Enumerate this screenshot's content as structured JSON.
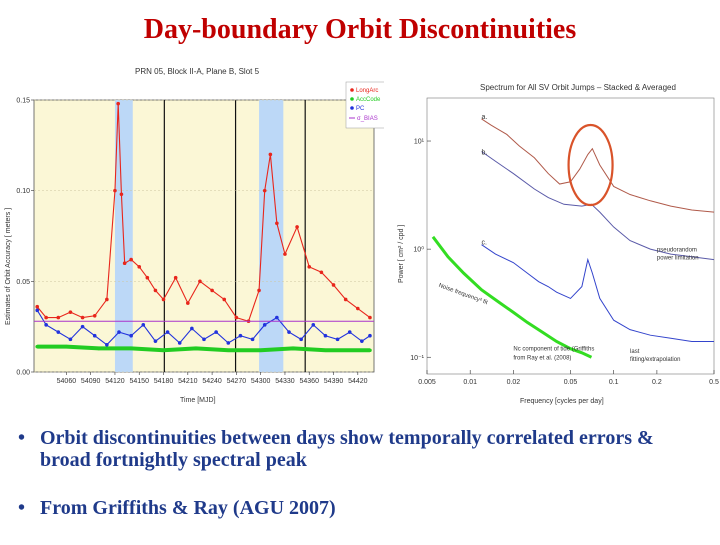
{
  "title": "Day-boundary Orbit Discontinuities",
  "bullets": [
    {
      "mark": "•",
      "text": "Orbit discontinuities between days show temporally correlated errors & broad fortnightly spectral peak"
    },
    {
      "mark": "•",
      "text": "From Griffiths & Ray (AGU 2007)"
    }
  ],
  "colors": {
    "title": "#c00000",
    "bullet_text": "#1f3a8a",
    "longarc": "#e8261c",
    "acccode": "#22cc22",
    "pc": "#2233dd",
    "sigma": "#aa33cc",
    "eclipse_band": "#bcd8f7",
    "plot_bg": "#fbf7d6",
    "highlight_circle": "#d9532a"
  },
  "chart_data": [
    {
      "type": "line",
      "title": "PRN 05, Block II-A, Plane B, Slot 5",
      "xlabel": "Time   [MJD]",
      "ylabel": "Estimates of Orbit Accuracy   [ meters ]",
      "xlim": [
        54020,
        54440
      ],
      "ylim": [
        0,
        0.15
      ],
      "xticks": [
        "54060",
        "54090",
        "54120",
        "54150",
        "54180",
        "54210",
        "54240",
        "54270",
        "54300",
        "54330",
        "54360",
        "54390",
        "54420"
      ],
      "xtick_values": [
        54060,
        54090,
        54120,
        54150,
        54180,
        54210,
        54240,
        54270,
        54300,
        54330,
        54360,
        54390,
        54420
      ],
      "yticks": [
        "0.00",
        "0.05",
        "0.10",
        "0.15"
      ],
      "ytick_values": [
        0,
        0.05,
        0.1,
        0.15
      ],
      "shaded_spans": [
        [
          54120,
          54142
        ],
        [
          54298,
          54328
        ]
      ],
      "vertical_lines": [
        54181,
        54269,
        54355
      ],
      "legend": [
        "LongArc",
        "AccCode",
        "PC",
        "σ_BIAS"
      ],
      "legend_position": "top-right",
      "series": [
        {
          "name": "LongArc",
          "x": [
            54024,
            54035,
            54050,
            54065,
            54080,
            54095,
            54110,
            54120,
            54124,
            54128,
            54132,
            54140,
            54150,
            54160,
            54170,
            54180,
            54195,
            54210,
            54225,
            54240,
            54255,
            54270,
            54285,
            54298,
            54305,
            54312,
            54320,
            54330,
            54345,
            54360,
            54375,
            54390,
            54405,
            54420,
            54435
          ],
          "values": [
            0.036,
            0.03,
            0.03,
            0.033,
            0.03,
            0.031,
            0.04,
            0.1,
            0.148,
            0.098,
            0.06,
            0.062,
            0.058,
            0.052,
            0.045,
            0.04,
            0.052,
            0.038,
            0.05,
            0.045,
            0.04,
            0.03,
            0.028,
            0.045,
            0.1,
            0.12,
            0.082,
            0.065,
            0.08,
            0.058,
            0.055,
            0.048,
            0.04,
            0.035,
            0.03
          ]
        },
        {
          "name": "AccCode",
          "x": [
            54024,
            54060,
            54100,
            54140,
            54180,
            54220,
            54260,
            54300,
            54340,
            54380,
            54435
          ],
          "values": [
            0.014,
            0.014,
            0.013,
            0.013,
            0.012,
            0.013,
            0.012,
            0.012,
            0.013,
            0.012,
            0.012
          ]
        },
        {
          "name": "PC",
          "x": [
            54024,
            54035,
            54050,
            54065,
            54080,
            54095,
            54110,
            54125,
            54140,
            54155,
            54170,
            54185,
            54200,
            54215,
            54230,
            54245,
            54260,
            54275,
            54290,
            54305,
            54320,
            54335,
            54350,
            54365,
            54380,
            54395,
            54410,
            54425,
            54435
          ],
          "values": [
            0.034,
            0.026,
            0.022,
            0.018,
            0.025,
            0.02,
            0.015,
            0.022,
            0.02,
            0.026,
            0.017,
            0.022,
            0.016,
            0.024,
            0.018,
            0.022,
            0.016,
            0.02,
            0.018,
            0.026,
            0.03,
            0.022,
            0.018,
            0.026,
            0.02,
            0.018,
            0.022,
            0.017,
            0.02
          ]
        },
        {
          "name": "σ_BIAS",
          "x": [
            54020,
            54440
          ],
          "values": [
            0.028,
            0.028
          ]
        }
      ]
    },
    {
      "type": "line",
      "title": "Spectrum for All SV Orbit Jumps – Stacked & Averaged",
      "xlabel": "Frequency   [cycles per day]",
      "ylabel": "Power   [ cm² / cpd ]",
      "xscale": "log",
      "yscale": "log",
      "xlim": [
        0.005,
        0.5
      ],
      "ylim": [
        0.07,
        25
      ],
      "xticks": [
        "0.005",
        "0.01",
        "0.02",
        "0.05",
        "0.1",
        "0.2",
        "0.5"
      ],
      "xtick_values": [
        0.005,
        0.01,
        0.02,
        0.05,
        0.1,
        0.2,
        0.5
      ],
      "yticks": [
        "10⁻¹",
        "10⁰",
        "10¹"
      ],
      "ytick_values": [
        0.1,
        1,
        10
      ],
      "series": [
        {
          "name": "a.",
          "x": [
            0.012,
            0.014,
            0.018,
            0.022,
            0.028,
            0.035,
            0.042,
            0.05,
            0.058,
            0.066,
            0.071,
            0.08,
            0.1,
            0.13,
            0.18,
            0.25,
            0.35,
            0.5
          ],
          "values": [
            16,
            14,
            11.5,
            9,
            7,
            5,
            4,
            4.2,
            5.5,
            7.5,
            8.5,
            6,
            3.8,
            3.2,
            2.8,
            2.5,
            2.3,
            2.2
          ]
        },
        {
          "name": "b.",
          "x": [
            0.012,
            0.015,
            0.02,
            0.028,
            0.035,
            0.045,
            0.06,
            0.07,
            0.08,
            0.1,
            0.13,
            0.18,
            0.25,
            0.35,
            0.5
          ],
          "values": [
            8,
            6.5,
            5,
            3.6,
            3,
            2.6,
            2.5,
            2.6,
            2.2,
            1.6,
            1.2,
            1.0,
            0.9,
            0.85,
            0.8
          ]
        },
        {
          "name": "c.",
          "x": [
            0.012,
            0.015,
            0.02,
            0.025,
            0.03,
            0.035,
            0.04,
            0.05,
            0.06,
            0.066,
            0.071,
            0.08,
            0.1,
            0.13,
            0.18,
            0.25,
            0.35,
            0.5
          ],
          "values": [
            1.1,
            0.9,
            0.75,
            0.6,
            0.5,
            0.45,
            0.4,
            0.35,
            0.45,
            0.8,
            0.6,
            0.35,
            0.22,
            0.18,
            0.16,
            0.15,
            0.14,
            0.14
          ]
        },
        {
          "name": "green",
          "x": [
            0.0055,
            0.007,
            0.009,
            0.012,
            0.016,
            0.02,
            0.025,
            0.032,
            0.04,
            0.05,
            0.06,
            0.07
          ],
          "values": [
            1.3,
            0.85,
            0.6,
            0.42,
            0.32,
            0.26,
            0.21,
            0.17,
            0.14,
            0.12,
            0.11,
            0.1
          ]
        }
      ],
      "annotations": [
        {
          "text": "a.",
          "x": 0.012,
          "y": 16
        },
        {
          "text": "b.",
          "x": 0.012,
          "y": 7.5
        },
        {
          "text": "c.",
          "x": 0.012,
          "y": 1.1
        },
        {
          "text": "Noise frequency² fit",
          "x": 0.006,
          "y": 0.45
        },
        {
          "text": "Nc component of tide (Griffiths",
          "x": 0.02,
          "y": 0.115
        },
        {
          "text": "from Ray et al. (2008)",
          "x": 0.02,
          "y": 0.095
        },
        {
          "text": "last",
          "x": 0.13,
          "y": 0.11
        },
        {
          "text": "fitting/extrapolation",
          "x": 0.13,
          "y": 0.092
        },
        {
          "text": "pseudorandom",
          "x": 0.2,
          "y": 0.95
        },
        {
          "text": "power limitation",
          "x": 0.2,
          "y": 0.8
        }
      ],
      "highlight": {
        "shape": "circle",
        "x": 0.069,
        "y": 6
      }
    }
  ]
}
